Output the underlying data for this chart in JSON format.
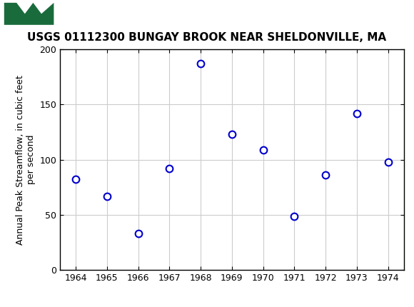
{
  "title": "USGS 01112300 BUNGAY BROOK NEAR SHELDONVILLE, MA",
  "ylabel": "Annual Peak Streamflow, in cubic feet\nper second",
  "years": [
    1964,
    1965,
    1966,
    1967,
    1968,
    1969,
    1970,
    1971,
    1972,
    1973,
    1974
  ],
  "values": [
    82,
    67,
    33,
    92,
    187,
    123,
    109,
    49,
    86,
    142,
    98
  ],
  "xlim": [
    1963.5,
    1974.5
  ],
  "ylim": [
    0,
    200
  ],
  "xticks": [
    1964,
    1965,
    1966,
    1967,
    1968,
    1969,
    1970,
    1971,
    1972,
    1973,
    1974
  ],
  "yticks": [
    0,
    50,
    100,
    150,
    200
  ],
  "marker_color": "#0000cc",
  "marker_size": 7,
  "marker_linewidth": 1.5,
  "header_bg_color": "#1a6b3c",
  "header_text_color": "#ffffff",
  "grid_color": "#cccccc",
  "bg_color": "#ffffff",
  "title_fontsize": 11,
  "ylabel_fontsize": 9,
  "tick_fontsize": 9
}
